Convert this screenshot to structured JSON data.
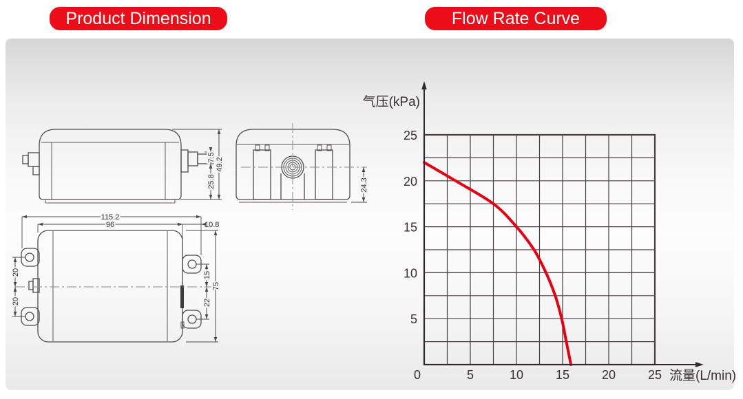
{
  "header": {
    "left_title": "Product Dimension",
    "right_title": "Flow Rate Curve"
  },
  "theme": {
    "banner_red": "#ed0d18",
    "curve_red": "#e60012",
    "grid_color": "#463d3d",
    "axis_color": "#2f2a2a",
    "drawing_line_color": "#4f4b4b"
  },
  "drawings": {
    "side_view": {
      "dims": {
        "overall_height": "49.2",
        "port_step": "7.5",
        "port_to_base": "25.8"
      }
    },
    "front_view": {
      "dims": {
        "port_center_height": "24.3"
      }
    },
    "plan_view": {
      "dims": {
        "overall_width": "115.2",
        "body_width": "96",
        "ear_overhang": "10.8",
        "overall_depth": "75",
        "left_upper": "20",
        "left_lower": "20",
        "right_upper": "15",
        "right_lower": "22"
      }
    }
  },
  "chart_data": {
    "type": "line",
    "title": "",
    "xlabel": "流量(L/min)",
    "ylabel": "气压(kPa)",
    "xlim": [
      0,
      25
    ],
    "ylim": [
      0,
      25
    ],
    "grid": true,
    "grid_step": 2.5,
    "x_ticks": [
      0,
      5,
      10,
      15,
      20,
      25
    ],
    "y_ticks": [
      25,
      20,
      15,
      10,
      5
    ],
    "series": [
      {
        "name": "pressure-flow-curve",
        "color": "#e60012",
        "points": [
          [
            0,
            22
          ],
          [
            3.4,
            20
          ],
          [
            7.5,
            17.5
          ],
          [
            10,
            15
          ],
          [
            11.9,
            12.5
          ],
          [
            13.2,
            10
          ],
          [
            14.2,
            7.5
          ],
          [
            14.9,
            5
          ],
          [
            15.4,
            2.5
          ],
          [
            15.9,
            0
          ]
        ]
      }
    ]
  }
}
